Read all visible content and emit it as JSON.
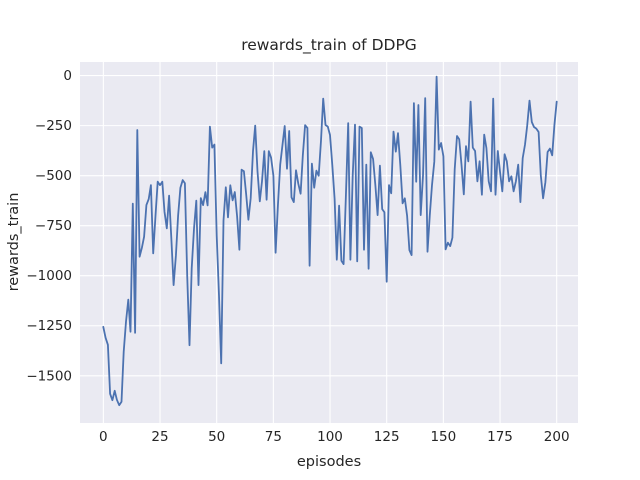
{
  "figure": {
    "title": "rewards_train of DDPG",
    "xlabel": "episodes",
    "ylabel": "rewards_train"
  },
  "chart_data": {
    "type": "line",
    "title": "rewards_train of DDPG",
    "xlabel": "episodes",
    "ylabel": "rewards_train",
    "legend": "none",
    "grid": true,
    "xlim": [
      -10.3,
      209.4
    ],
    "ylim": [
      -1736,
      68
    ],
    "x_ticks": [
      0,
      25,
      50,
      75,
      100,
      125,
      150,
      175,
      200
    ],
    "x_tick_labels": [
      "0",
      "25",
      "50",
      "75",
      "100",
      "125",
      "150",
      "175",
      "200"
    ],
    "y_ticks": [
      0,
      -250,
      -500,
      -750,
      -1000,
      -1250,
      -1500
    ],
    "y_tick_labels": [
      "0",
      "−250",
      "−500",
      "−750",
      "−1000",
      "−1250",
      "−1500"
    ],
    "colors": {
      "line": "#4c72b0",
      "plot_background": "#eaeaf2",
      "grid": "#ffffff",
      "text": "#262626",
      "figure_background": "#ffffff"
    },
    "series": [
      {
        "name": "rewards_train",
        "x_start": 0,
        "x_step": 1,
        "values": [
          -1256,
          -1310,
          -1345,
          -1590,
          -1622,
          -1575,
          -1620,
          -1647,
          -1630,
          -1380,
          -1230,
          -1120,
          -1280,
          -640,
          -1285,
          -272,
          -905,
          -860,
          -805,
          -647,
          -617,
          -547,
          -888,
          -700,
          -530,
          -547,
          -530,
          -680,
          -763,
          -600,
          -810,
          -1047,
          -900,
          -700,
          -560,
          -522,
          -538,
          -1000,
          -1347,
          -963,
          -765,
          -625,
          -1047,
          -612,
          -647,
          -582,
          -648,
          -255,
          -360,
          -345,
          -800,
          -1100,
          -1438,
          -725,
          -558,
          -708,
          -548,
          -623,
          -582,
          -703,
          -870,
          -470,
          -478,
          -595,
          -720,
          -612,
          -378,
          -250,
          -478,
          -628,
          -528,
          -378,
          -620,
          -378,
          -410,
          -500,
          -885,
          -650,
          -445,
          -350,
          -252,
          -465,
          -277,
          -608,
          -632,
          -473,
          -540,
          -590,
          -400,
          -248,
          -262,
          -950,
          -440,
          -560,
          -475,
          -500,
          -325,
          -115,
          -247,
          -255,
          -297,
          -447,
          -615,
          -920,
          -650,
          -925,
          -942,
          -600,
          -238,
          -920,
          -500,
          -245,
          -928,
          -255,
          -262,
          -870,
          -445,
          -965,
          -383,
          -417,
          -550,
          -697,
          -450,
          -667,
          -683,
          -1030,
          -547,
          -588,
          -280,
          -380,
          -288,
          -447,
          -638,
          -613,
          -700,
          -872,
          -897,
          -138,
          -530,
          -147,
          -697,
          -500,
          -113,
          -880,
          -697,
          -547,
          -430,
          -5,
          -370,
          -337,
          -403,
          -868,
          -835,
          -852,
          -810,
          -468,
          -302,
          -318,
          -445,
          -593,
          -353,
          -428,
          -130,
          -360,
          -377,
          -528,
          -428,
          -595,
          -295,
          -362,
          -528,
          -578,
          -115,
          -595,
          -377,
          -480,
          -578,
          -393,
          -428,
          -528,
          -503,
          -578,
          -528,
          -445,
          -632,
          -412,
          -345,
          -250,
          -125,
          -232,
          -257,
          -265,
          -282,
          -498,
          -613,
          -532,
          -382,
          -365,
          -398,
          -248,
          -130
        ]
      }
    ]
  }
}
